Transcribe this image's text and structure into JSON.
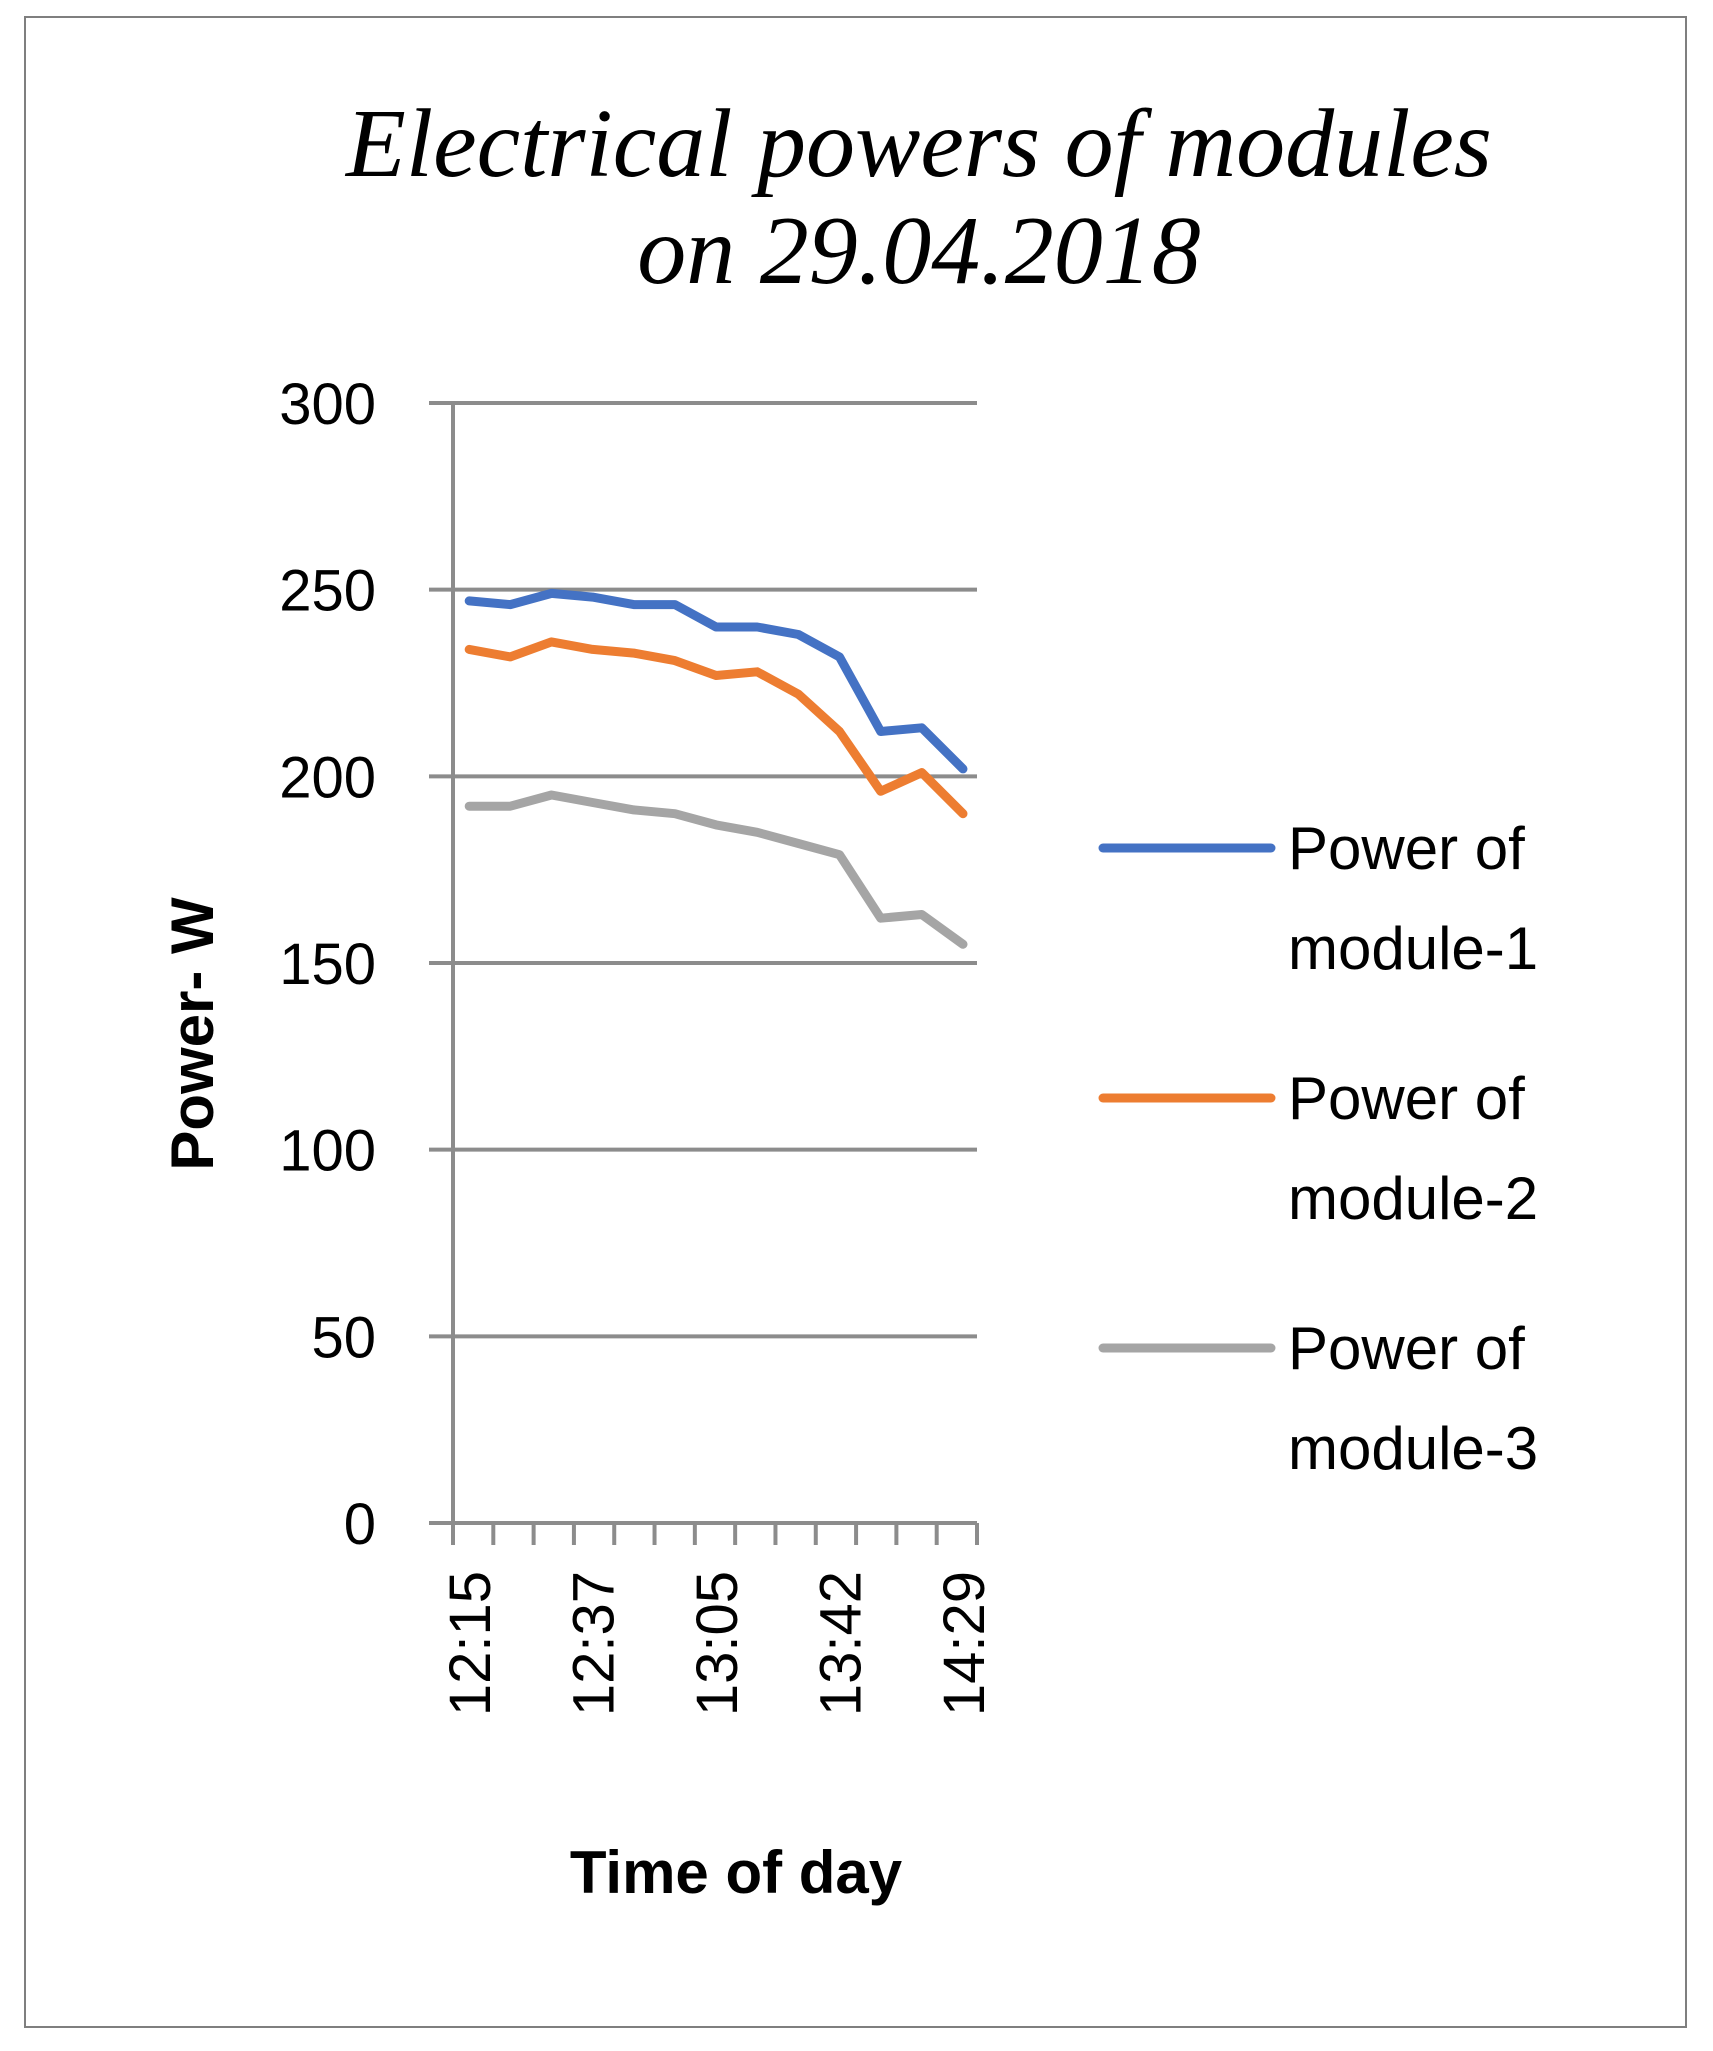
{
  "chart_data": {
    "type": "line",
    "title_lines": [
      "Electrical powers of modules",
      "on 29.04.2018"
    ],
    "xlabel": "Time of day",
    "ylabel": "Power-  W",
    "ylim": [
      0,
      300
    ],
    "y_ticks": [
      "0",
      "50",
      "100",
      "150",
      "200",
      "250",
      "300"
    ],
    "x_tick_labels": [
      {
        "index": 0,
        "label": "12:15"
      },
      {
        "index": 3,
        "label": "12:37"
      },
      {
        "index": 6,
        "label": "13:05"
      },
      {
        "index": 9,
        "label": "13:42"
      },
      {
        "index": 12,
        "label": "14:29"
      }
    ],
    "x_count": 13,
    "grid": "horizontal",
    "legend_position": "right",
    "series": [
      {
        "name": "Power of module-1",
        "legend_lines": [
          "Power of",
          "module-1"
        ],
        "color": "#4472C4",
        "values": [
          247,
          246,
          249,
          248,
          246,
          246,
          240,
          240,
          238,
          232,
          212,
          213,
          202
        ]
      },
      {
        "name": "Power of module-2",
        "legend_lines": [
          "Power of",
          "module-2"
        ],
        "color": "#ED7D31",
        "values": [
          234,
          232,
          236,
          234,
          233,
          231,
          227,
          228,
          222,
          212,
          196,
          201,
          190
        ]
      },
      {
        "name": "Power of module-3",
        "legend_lines": [
          "Power of",
          "module-3"
        ],
        "color": "#A5A5A5",
        "values": [
          192,
          192,
          195,
          193,
          191,
          190,
          187,
          185,
          182,
          179,
          162,
          163,
          155
        ]
      }
    ]
  }
}
